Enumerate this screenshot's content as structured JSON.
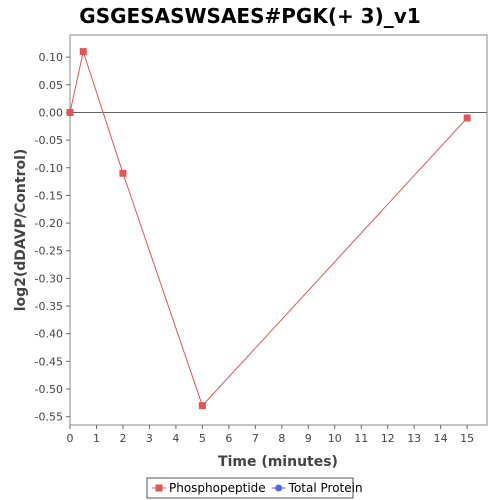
{
  "chart_data": {
    "type": "line",
    "title": "GSGESASWSAES#PGK(+ 3)_v1",
    "xlabel": "Time (minutes)",
    "ylabel": "log2(dDAVP/Control)",
    "xlim": [
      0,
      15.75
    ],
    "ylim": [
      -0.565,
      0.14
    ],
    "xticks": [
      0,
      1,
      2,
      3,
      4,
      5,
      6,
      7,
      8,
      9,
      10,
      11,
      12,
      13,
      14,
      15
    ],
    "yticks": [
      0.1,
      0.05,
      0.0,
      -0.05,
      -0.1,
      -0.15,
      -0.2,
      -0.25,
      -0.3,
      -0.35,
      -0.4,
      -0.45,
      -0.5,
      -0.55
    ],
    "ytick_labels": [
      "0.10",
      "0.05",
      "0.00",
      "-0.05",
      "-0.10",
      "-0.15",
      "-0.20",
      "-0.25",
      "-0.30",
      "-0.35",
      "-0.40",
      "-0.45",
      "-0.50",
      "-0.55"
    ],
    "zero_line": 0,
    "grid": false,
    "legend_position": "bottom",
    "series": [
      {
        "name": "Phosphopeptide",
        "color": "#e05555",
        "marker": "square",
        "x": [
          0,
          0.5,
          2,
          5,
          15
        ],
        "y": [
          0.0,
          0.11,
          -0.11,
          -0.53,
          -0.01
        ]
      },
      {
        "name": "Total Protein",
        "color": "#5566ee",
        "marker": "circle",
        "x": [],
        "y": []
      }
    ]
  }
}
